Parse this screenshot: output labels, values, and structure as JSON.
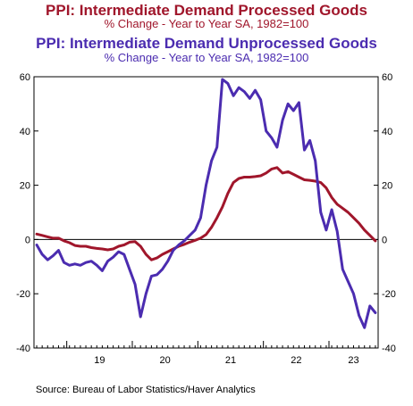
{
  "header": {
    "title1": "PPI: Intermediate Demand Processed Goods",
    "subtitle1": "% Change - Year to Year    SA, 1982=100",
    "title2": "PPI: Intermediate Demand Unprocessed Goods",
    "subtitle2": "% Change - Year to Year    SA, 1982=100"
  },
  "source": "Source:  Bureau of Labor Statistics/Haver Analytics",
  "colors": {
    "processed": "#A0162B",
    "unprocessed": "#4B2CB0",
    "axis": "#000000"
  },
  "chart_data": {
    "type": "line",
    "x_start": "2018-07",
    "x_end": "2023-09",
    "ylim": [
      -40,
      60
    ],
    "yticks": [
      -40,
      -20,
      0,
      20,
      40,
      60
    ],
    "xtick_labels": [
      "19",
      "20",
      "21",
      "22",
      "23"
    ],
    "x": [
      "2018-07",
      "2018-08",
      "2018-09",
      "2018-10",
      "2018-11",
      "2018-12",
      "2019-01",
      "2019-02",
      "2019-03",
      "2019-04",
      "2019-05",
      "2019-06",
      "2019-07",
      "2019-08",
      "2019-09",
      "2019-10",
      "2019-11",
      "2019-12",
      "2020-01",
      "2020-02",
      "2020-03",
      "2020-04",
      "2020-05",
      "2020-06",
      "2020-07",
      "2020-08",
      "2020-09",
      "2020-10",
      "2020-11",
      "2020-12",
      "2021-01",
      "2021-02",
      "2021-03",
      "2021-04",
      "2021-05",
      "2021-06",
      "2021-07",
      "2021-08",
      "2021-09",
      "2021-10",
      "2021-11",
      "2021-12",
      "2022-01",
      "2022-02",
      "2022-03",
      "2022-04",
      "2022-05",
      "2022-06",
      "2022-07",
      "2022-08",
      "2022-09",
      "2022-10",
      "2022-11",
      "2022-12",
      "2023-01",
      "2023-02",
      "2023-03",
      "2023-04",
      "2023-05",
      "2023-06",
      "2023-07",
      "2023-08",
      "2023-09"
    ],
    "series": [
      {
        "name": "PPI: Intermediate Demand Processed Goods",
        "color": "#A0162B",
        "values": [
          2.0,
          1.5,
          1.0,
          0.5,
          0.5,
          -0.5,
          -1.2,
          -2.2,
          -2.5,
          -2.5,
          -3.0,
          -3.3,
          -3.5,
          -3.8,
          -3.5,
          -2.5,
          -2.0,
          -1.0,
          -0.8,
          -2.5,
          -5.5,
          -7.5,
          -6.8,
          -5.5,
          -4.5,
          -3.5,
          -2.5,
          -1.8,
          -1.0,
          -0.3,
          0.5,
          1.8,
          4.5,
          8.0,
          12.0,
          17.0,
          21.0,
          22.5,
          23.0,
          23.0,
          23.2,
          23.5,
          24.5,
          26.0,
          26.5,
          24.5,
          25.0,
          24.0,
          23.0,
          22.0,
          21.8,
          21.5,
          21.0,
          19.0,
          15.5,
          13.0,
          11.5,
          10.0,
          8.0,
          6.0,
          3.5,
          1.5,
          -0.5
        ]
      },
      {
        "name": "PPI: Intermediate Demand Unprocessed Goods",
        "color": "#4B2CB0",
        "values": [
          -2.0,
          -5.5,
          -7.5,
          -6.0,
          -4.0,
          -8.5,
          -9.5,
          -9.0,
          -9.5,
          -8.5,
          -8.0,
          -9.5,
          -11.5,
          -8.0,
          -6.5,
          -4.5,
          -5.5,
          -11.0,
          -16.5,
          -28.5,
          -20.0,
          -13.5,
          -13.0,
          -11.0,
          -8.0,
          -4.0,
          -2.0,
          -0.5,
          1.5,
          3.5,
          8.0,
          20.0,
          29.0,
          34.0,
          59.0,
          57.5,
          53.0,
          56.0,
          54.5,
          52.0,
          55.0,
          51.5,
          40.0,
          37.5,
          34.0,
          44.0,
          50.0,
          47.5,
          50.5,
          33.0,
          36.5,
          29.0,
          10.0,
          3.5,
          11.0,
          3.0,
          -11.0,
          -15.5,
          -20.0,
          -28.0,
          -32.5,
          -24.5,
          -27.0
        ]
      }
    ]
  }
}
